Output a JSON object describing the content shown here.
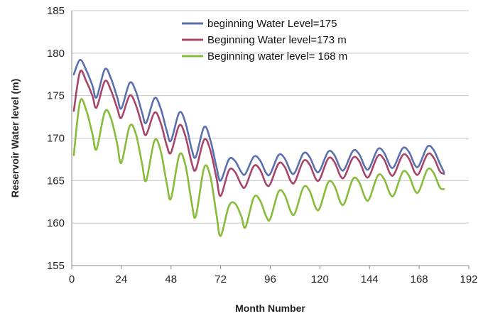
{
  "chart_data": {
    "type": "line",
    "xlabel": "Month Number",
    "ylabel": "Reservoir Water level (m)",
    "xlim": [
      0,
      192
    ],
    "ylim": [
      155,
      185
    ],
    "xticks": [
      0,
      24,
      48,
      72,
      96,
      120,
      144,
      168,
      192
    ],
    "yticks": [
      155,
      160,
      165,
      170,
      175,
      180,
      185
    ],
    "grid": "horizontal",
    "legend_position": "top-right",
    "series": [
      {
        "name": "beginning Water Level=175",
        "color": "#5a6fb0",
        "points": [
          [
            1,
            177.5
          ],
          [
            4,
            179.2
          ],
          [
            7,
            178.0
          ],
          [
            10,
            176.2
          ],
          [
            12,
            174.8
          ],
          [
            16,
            178.1
          ],
          [
            19,
            177.0
          ],
          [
            22,
            174.8
          ],
          [
            24,
            173.5
          ],
          [
            28,
            176.5
          ],
          [
            31,
            175.5
          ],
          [
            34,
            173.0
          ],
          [
            36,
            171.8
          ],
          [
            40,
            174.7
          ],
          [
            43,
            173.5
          ],
          [
            46,
            170.8
          ],
          [
            48,
            169.7
          ],
          [
            52,
            173.0
          ],
          [
            55,
            171.8
          ],
          [
            58,
            168.7
          ],
          [
            60,
            167.8
          ],
          [
            64,
            171.3
          ],
          [
            67,
            169.8
          ],
          [
            70,
            166.6
          ],
          [
            72,
            165.0
          ],
          [
            76,
            167.5
          ],
          [
            79,
            167.3
          ],
          [
            82,
            166.0
          ],
          [
            84,
            165.8
          ],
          [
            88,
            167.8
          ],
          [
            91,
            167.4
          ],
          [
            94,
            165.9
          ],
          [
            96,
            165.8
          ],
          [
            100,
            168.0
          ],
          [
            103,
            167.6
          ],
          [
            106,
            166.0
          ],
          [
            108,
            166.0
          ],
          [
            112,
            168.2
          ],
          [
            115,
            167.8
          ],
          [
            118,
            166.2
          ],
          [
            120,
            166.2
          ],
          [
            124,
            168.4
          ],
          [
            127,
            168.0
          ],
          [
            130,
            166.4
          ],
          [
            132,
            166.4
          ],
          [
            136,
            168.5
          ],
          [
            139,
            168.1
          ],
          [
            142,
            166.5
          ],
          [
            144,
            166.5
          ],
          [
            148,
            168.7
          ],
          [
            151,
            168.3
          ],
          [
            154,
            166.7
          ],
          [
            156,
            166.7
          ],
          [
            160,
            168.8
          ],
          [
            163,
            168.4
          ],
          [
            166,
            166.8
          ],
          [
            168,
            166.8
          ],
          [
            172,
            169.0
          ],
          [
            175,
            168.6
          ],
          [
            178,
            167.0
          ],
          [
            180,
            166.0
          ]
        ]
      },
      {
        "name": "Beginning Water level=173 m",
        "color": "#a8436b",
        "points": [
          [
            1,
            173.2
          ],
          [
            4,
            177.8
          ],
          [
            7,
            176.7
          ],
          [
            10,
            175.0
          ],
          [
            12,
            173.6
          ],
          [
            16,
            176.7
          ],
          [
            19,
            175.6
          ],
          [
            22,
            173.5
          ],
          [
            24,
            172.4
          ],
          [
            28,
            175.0
          ],
          [
            31,
            173.9
          ],
          [
            34,
            171.5
          ],
          [
            36,
            170.4
          ],
          [
            40,
            173.0
          ],
          [
            43,
            171.8
          ],
          [
            46,
            169.1
          ],
          [
            48,
            168.3
          ],
          [
            52,
            171.5
          ],
          [
            55,
            170.2
          ],
          [
            58,
            167.1
          ],
          [
            60,
            166.3
          ],
          [
            64,
            169.8
          ],
          [
            67,
            168.6
          ],
          [
            70,
            165.3
          ],
          [
            72,
            163.2
          ],
          [
            76,
            166.2
          ],
          [
            79,
            166.0
          ],
          [
            82,
            164.5
          ],
          [
            84,
            164.3
          ],
          [
            88,
            166.7
          ],
          [
            91,
            166.3
          ],
          [
            94,
            164.6
          ],
          [
            96,
            164.6
          ],
          [
            100,
            167.0
          ],
          [
            103,
            166.6
          ],
          [
            106,
            164.9
          ],
          [
            108,
            164.9
          ],
          [
            112,
            167.3
          ],
          [
            115,
            166.9
          ],
          [
            118,
            165.2
          ],
          [
            120,
            165.2
          ],
          [
            124,
            167.6
          ],
          [
            127,
            167.2
          ],
          [
            130,
            165.5
          ],
          [
            132,
            165.5
          ],
          [
            136,
            167.7
          ],
          [
            139,
            167.3
          ],
          [
            142,
            165.6
          ],
          [
            144,
            165.6
          ],
          [
            148,
            167.9
          ],
          [
            151,
            167.5
          ],
          [
            154,
            165.8
          ],
          [
            156,
            165.8
          ],
          [
            160,
            168.0
          ],
          [
            163,
            167.6
          ],
          [
            166,
            165.9
          ],
          [
            168,
            165.9
          ],
          [
            172,
            168.1
          ],
          [
            175,
            167.7
          ],
          [
            178,
            166.1
          ],
          [
            180,
            165.8
          ]
        ]
      },
      {
        "name": "Beginning water level= 168 m",
        "color": "#86bc3a",
        "points": [
          [
            1,
            168.0
          ],
          [
            4,
            174.3
          ],
          [
            7,
            173.3
          ],
          [
            10,
            170.5
          ],
          [
            12,
            168.7
          ],
          [
            16,
            173.1
          ],
          [
            19,
            172.3
          ],
          [
            22,
            169.3
          ],
          [
            24,
            167.1
          ],
          [
            28,
            171.4
          ],
          [
            31,
            170.5
          ],
          [
            34,
            167.0
          ],
          [
            36,
            165.0
          ],
          [
            40,
            169.7
          ],
          [
            43,
            168.5
          ],
          [
            46,
            164.6
          ],
          [
            48,
            162.9
          ],
          [
            52,
            168.0
          ],
          [
            55,
            166.8
          ],
          [
            58,
            162.4
          ],
          [
            60,
            160.8
          ],
          [
            64,
            166.5
          ],
          [
            67,
            165.5
          ],
          [
            70,
            161.0
          ],
          [
            72,
            158.5
          ],
          [
            76,
            162.0
          ],
          [
            79,
            162.3
          ],
          [
            82,
            160.8
          ],
          [
            84,
            159.5
          ],
          [
            88,
            163.0
          ],
          [
            91,
            162.7
          ],
          [
            94,
            160.8
          ],
          [
            96,
            160.5
          ],
          [
            100,
            163.7
          ],
          [
            103,
            163.3
          ],
          [
            106,
            161.3
          ],
          [
            108,
            161.2
          ],
          [
            112,
            164.2
          ],
          [
            115,
            163.8
          ],
          [
            118,
            161.8
          ],
          [
            120,
            161.8
          ],
          [
            124,
            164.8
          ],
          [
            127,
            164.4
          ],
          [
            130,
            162.4
          ],
          [
            132,
            162.4
          ],
          [
            136,
            165.2
          ],
          [
            139,
            164.8
          ],
          [
            142,
            162.9
          ],
          [
            144,
            162.9
          ],
          [
            148,
            165.6
          ],
          [
            151,
            165.2
          ],
          [
            154,
            163.4
          ],
          [
            156,
            163.4
          ],
          [
            160,
            166.0
          ],
          [
            163,
            165.6
          ],
          [
            166,
            163.8
          ],
          [
            168,
            163.8
          ],
          [
            172,
            166.3
          ],
          [
            175,
            165.9
          ],
          [
            178,
            164.2
          ],
          [
            180,
            164.0
          ]
        ]
      }
    ]
  }
}
